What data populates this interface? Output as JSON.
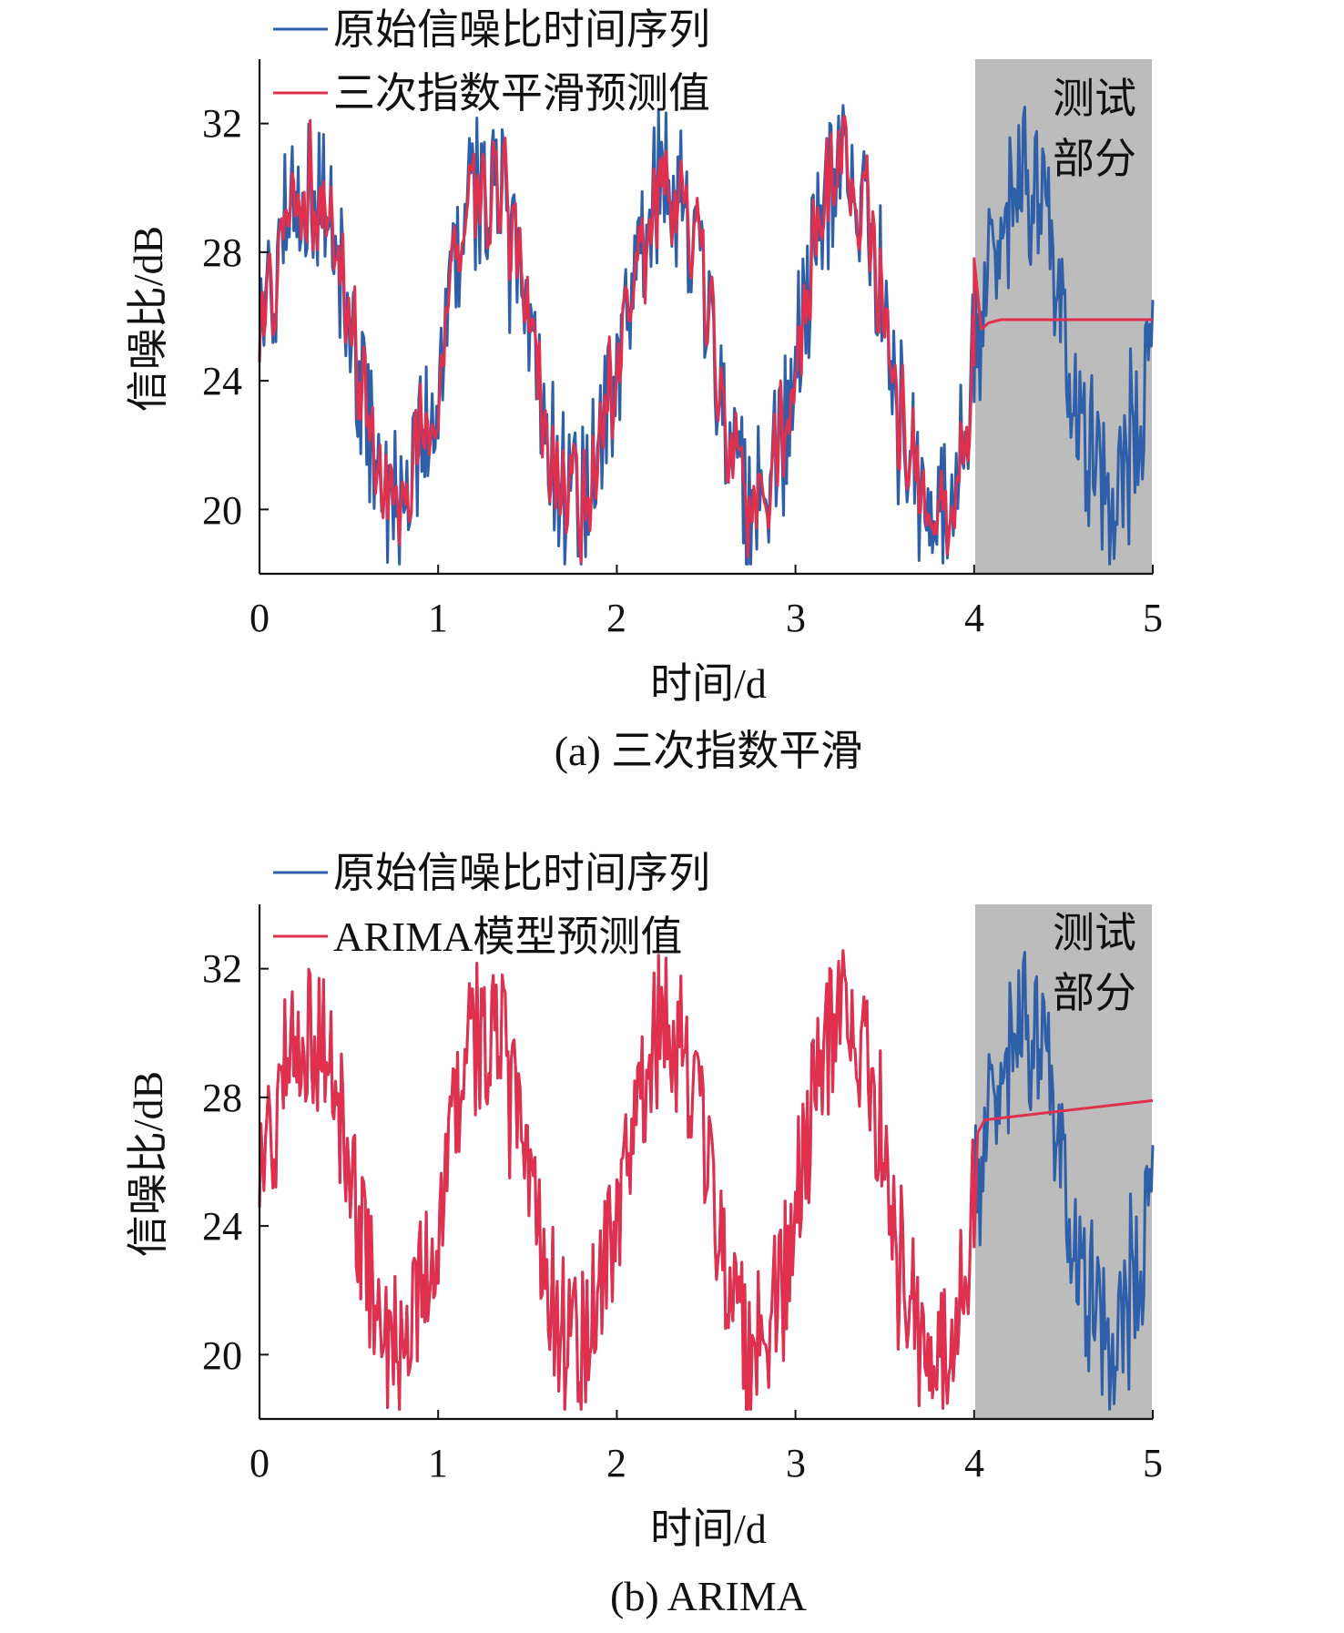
{
  "colors": {
    "original": "#2f5fa8",
    "predicted": "#e0304e",
    "test_region": "#bcbcbc",
    "axis": "#111111"
  },
  "chart_data": [
    {
      "type": "line",
      "caption": "(a) 三次指数平滑",
      "xlabel": "时间/d",
      "ylabel": "信噪比/dB",
      "xlim": [
        0,
        5
      ],
      "ylim": [
        18,
        34
      ],
      "xticks": [
        "0",
        "1",
        "2",
        "3",
        "4",
        "5"
      ],
      "yticks": [
        "20",
        "24",
        "28",
        "32"
      ],
      "test_region": {
        "label_line1": "测试",
        "label_line2": "部分",
        "x_start": 4,
        "x_end": 5
      },
      "legend": {
        "position": "top-left"
      },
      "series": [
        {
          "name": "原始信噪比时间序列",
          "role": "original",
          "period_days": 1,
          "mean": 25.2,
          "amplitude": 5.0,
          "noise": 1.1,
          "phase_shift": 0.0,
          "x_range": [
            0,
            5
          ]
        },
        {
          "name": "三次指数平滑预测值",
          "role": "predicted",
          "fit_range": [
            0,
            4
          ],
          "forecast": {
            "start": 27.8,
            "dip": 25.6,
            "level": 25.9
          }
        }
      ]
    },
    {
      "type": "line",
      "caption": "(b) ARIMA",
      "xlabel": "时间/d",
      "ylabel": "信噪比/dB",
      "xlim": [
        0,
        5
      ],
      "ylim": [
        18,
        34
      ],
      "xticks": [
        "0",
        "1",
        "2",
        "3",
        "4",
        "5"
      ],
      "yticks": [
        "20",
        "24",
        "28",
        "32"
      ],
      "test_region": {
        "label_line1": "测试",
        "label_line2": "部分",
        "x_start": 4,
        "x_end": 5
      },
      "legend": {
        "position": "top-left"
      },
      "series": [
        {
          "name": "原始信噪比时间序列",
          "role": "original",
          "period_days": 1,
          "mean": 25.2,
          "amplitude": 5.0,
          "noise": 1.1,
          "x_range": [
            0,
            5
          ]
        },
        {
          "name": "ARIMA模型预测值",
          "role": "predicted",
          "fit_range": [
            0,
            4
          ],
          "forecast": {
            "start": 27.3,
            "end": 27.9
          }
        }
      ]
    }
  ]
}
